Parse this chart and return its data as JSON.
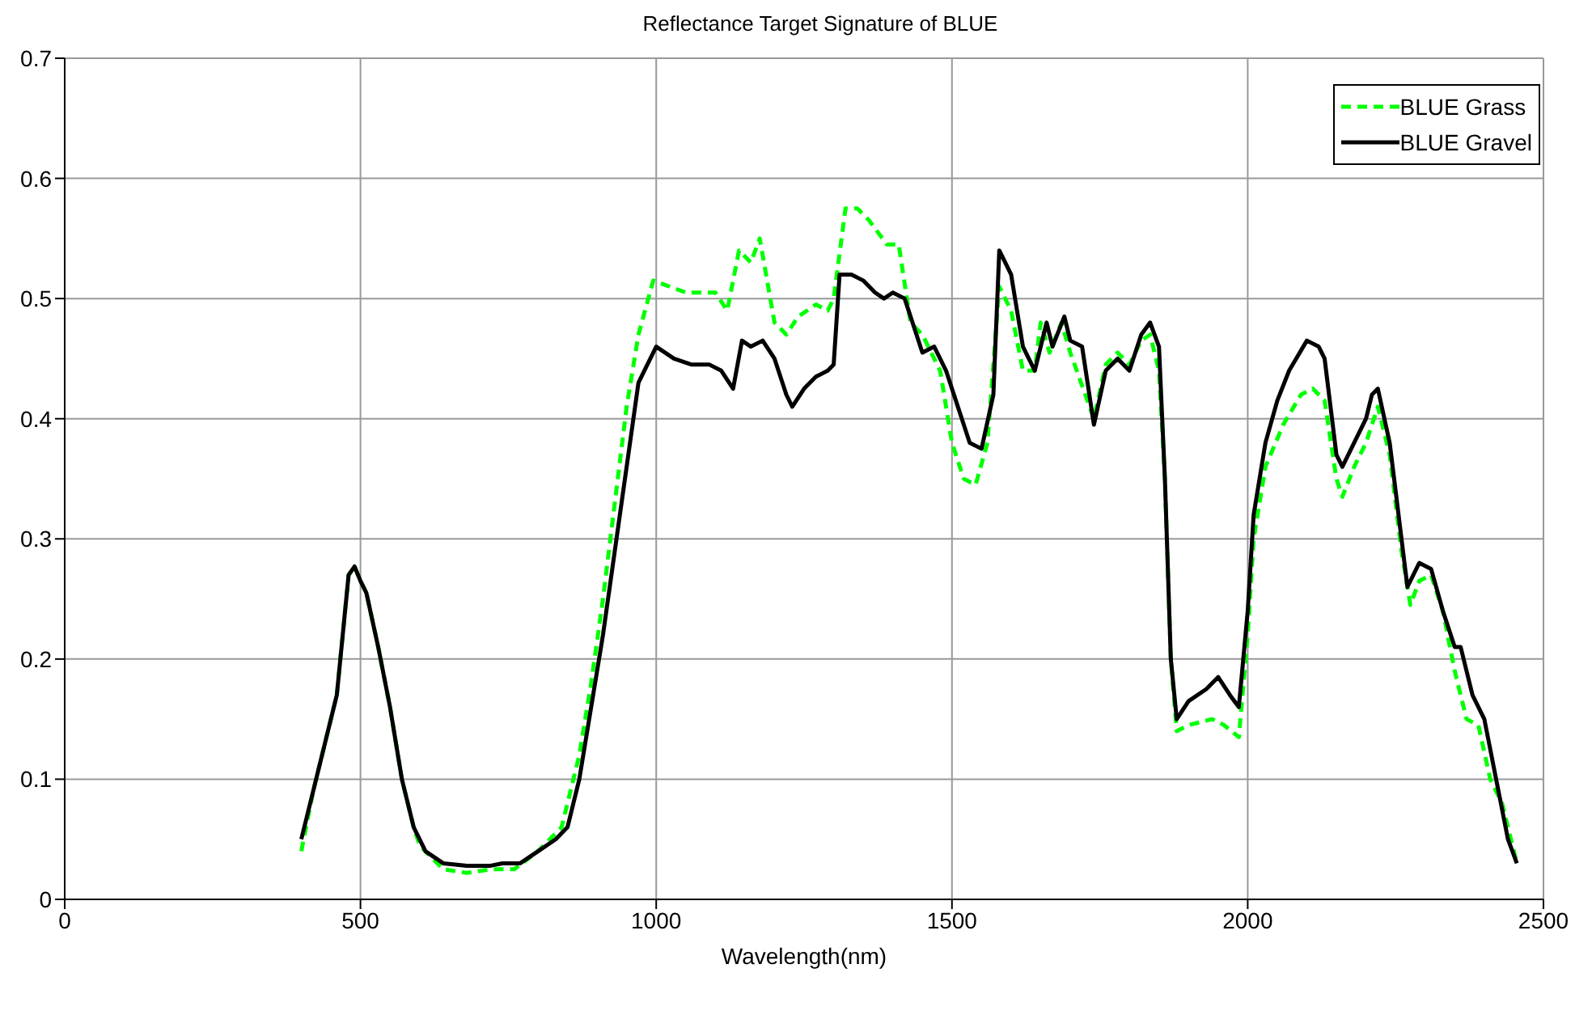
{
  "chart_data": {
    "type": "line",
    "title": "Reflectance Target Signature of BLUE",
    "xlabel": "Wavelength(nm)",
    "xlim": [
      0,
      2500
    ],
    "xticks": [
      0,
      500,
      1000,
      1500,
      2000,
      2500
    ],
    "ylim": [
      0,
      0.7
    ],
    "yticks": [
      0,
      0.1,
      0.2,
      0.3,
      0.4,
      0.5,
      0.6,
      0.7
    ],
    "grid": true,
    "legend": "top right",
    "marker": "none",
    "series": [
      {
        "name": "BLUE Grass",
        "color": "#00ff00",
        "line_style": "dashed",
        "x": [
          400,
          420,
          440,
          460,
          470,
          480,
          490,
          500,
          510,
          530,
          550,
          570,
          590,
          600,
          640,
          680,
          720,
          740,
          760,
          800,
          840,
          870,
          890,
          910,
          930,
          950,
          970,
          995,
          1050,
          1100,
          1120,
          1140,
          1160,
          1175,
          1200,
          1220,
          1240,
          1270,
          1290,
          1300,
          1320,
          1340,
          1360,
          1390,
          1410,
          1430,
          1450,
          1480,
          1500,
          1520,
          1540,
          1560,
          1580,
          1600,
          1620,
          1640,
          1650,
          1665,
          1685,
          1700,
          1740,
          1760,
          1780,
          1800,
          1820,
          1835,
          1850,
          1860,
          1870,
          1880,
          1900,
          1940,
          1960,
          1985,
          2000,
          2010,
          2030,
          2060,
          2090,
          2110,
          2130,
          2150,
          2160,
          2180,
          2200,
          2220,
          2240,
          2260,
          2275,
          2290,
          2310,
          2330,
          2350,
          2370,
          2390,
          2410,
          2430,
          2455
        ],
        "values": [
          0.04,
          0.09,
          0.13,
          0.17,
          0.22,
          0.27,
          0.277,
          0.265,
          0.255,
          0.21,
          0.16,
          0.1,
          0.06,
          0.045,
          0.025,
          0.022,
          0.025,
          0.025,
          0.025,
          0.04,
          0.06,
          0.12,
          0.18,
          0.25,
          0.33,
          0.41,
          0.47,
          0.515,
          0.505,
          0.505,
          0.49,
          0.54,
          0.53,
          0.55,
          0.48,
          0.47,
          0.485,
          0.495,
          0.49,
          0.5,
          0.575,
          0.575,
          0.565,
          0.545,
          0.545,
          0.48,
          0.47,
          0.44,
          0.38,
          0.35,
          0.345,
          0.38,
          0.51,
          0.49,
          0.44,
          0.44,
          0.48,
          0.455,
          0.48,
          0.455,
          0.4,
          0.445,
          0.455,
          0.445,
          0.465,
          0.47,
          0.44,
          0.35,
          0.2,
          0.14,
          0.145,
          0.15,
          0.145,
          0.135,
          0.22,
          0.3,
          0.36,
          0.395,
          0.42,
          0.425,
          0.415,
          0.35,
          0.335,
          0.36,
          0.38,
          0.41,
          0.37,
          0.29,
          0.245,
          0.265,
          0.27,
          0.24,
          0.19,
          0.15,
          0.145,
          0.1,
          0.08,
          0.03
        ]
      },
      {
        "name": "BLUE Gravel",
        "color": "#000000",
        "line_style": "solid",
        "x": [
          400,
          420,
          440,
          460,
          470,
          480,
          490,
          500,
          510,
          530,
          550,
          570,
          590,
          610,
          640,
          680,
          720,
          740,
          770,
          800,
          830,
          850,
          870,
          890,
          910,
          930,
          950,
          970,
          985,
          1000,
          1030,
          1060,
          1090,
          1110,
          1130,
          1145,
          1160,
          1180,
          1200,
          1220,
          1230,
          1250,
          1270,
          1290,
          1300,
          1310,
          1330,
          1350,
          1370,
          1385,
          1400,
          1420,
          1440,
          1450,
          1470,
          1490,
          1510,
          1530,
          1550,
          1570,
          1580,
          1600,
          1620,
          1640,
          1660,
          1670,
          1690,
          1700,
          1720,
          1740,
          1760,
          1780,
          1800,
          1820,
          1835,
          1850,
          1860,
          1870,
          1880,
          1900,
          1930,
          1950,
          1970,
          1985,
          2000,
          2010,
          2030,
          2050,
          2070,
          2100,
          2120,
          2130,
          2150,
          2160,
          2180,
          2200,
          2210,
          2220,
          2240,
          2260,
          2270,
          2290,
          2310,
          2330,
          2350,
          2360,
          2380,
          2400,
          2420,
          2440,
          2455
        ],
        "values": [
          0.05,
          0.09,
          0.13,
          0.17,
          0.22,
          0.27,
          0.277,
          0.265,
          0.255,
          0.21,
          0.16,
          0.1,
          0.06,
          0.04,
          0.03,
          0.028,
          0.028,
          0.03,
          0.03,
          0.04,
          0.05,
          0.06,
          0.1,
          0.16,
          0.22,
          0.29,
          0.36,
          0.43,
          0.445,
          0.46,
          0.45,
          0.445,
          0.445,
          0.44,
          0.425,
          0.465,
          0.46,
          0.465,
          0.45,
          0.42,
          0.41,
          0.425,
          0.435,
          0.44,
          0.445,
          0.52,
          0.52,
          0.515,
          0.505,
          0.5,
          0.505,
          0.5,
          0.47,
          0.455,
          0.46,
          0.44,
          0.41,
          0.38,
          0.375,
          0.42,
          0.54,
          0.52,
          0.46,
          0.44,
          0.48,
          0.46,
          0.485,
          0.465,
          0.46,
          0.395,
          0.44,
          0.45,
          0.44,
          0.47,
          0.48,
          0.46,
          0.35,
          0.2,
          0.15,
          0.165,
          0.175,
          0.185,
          0.17,
          0.16,
          0.24,
          0.32,
          0.38,
          0.415,
          0.44,
          0.465,
          0.46,
          0.45,
          0.37,
          0.36,
          0.38,
          0.4,
          0.42,
          0.425,
          0.38,
          0.3,
          0.26,
          0.28,
          0.275,
          0.24,
          0.21,
          0.21,
          0.17,
          0.15,
          0.1,
          0.05,
          0.03
        ]
      }
    ]
  }
}
